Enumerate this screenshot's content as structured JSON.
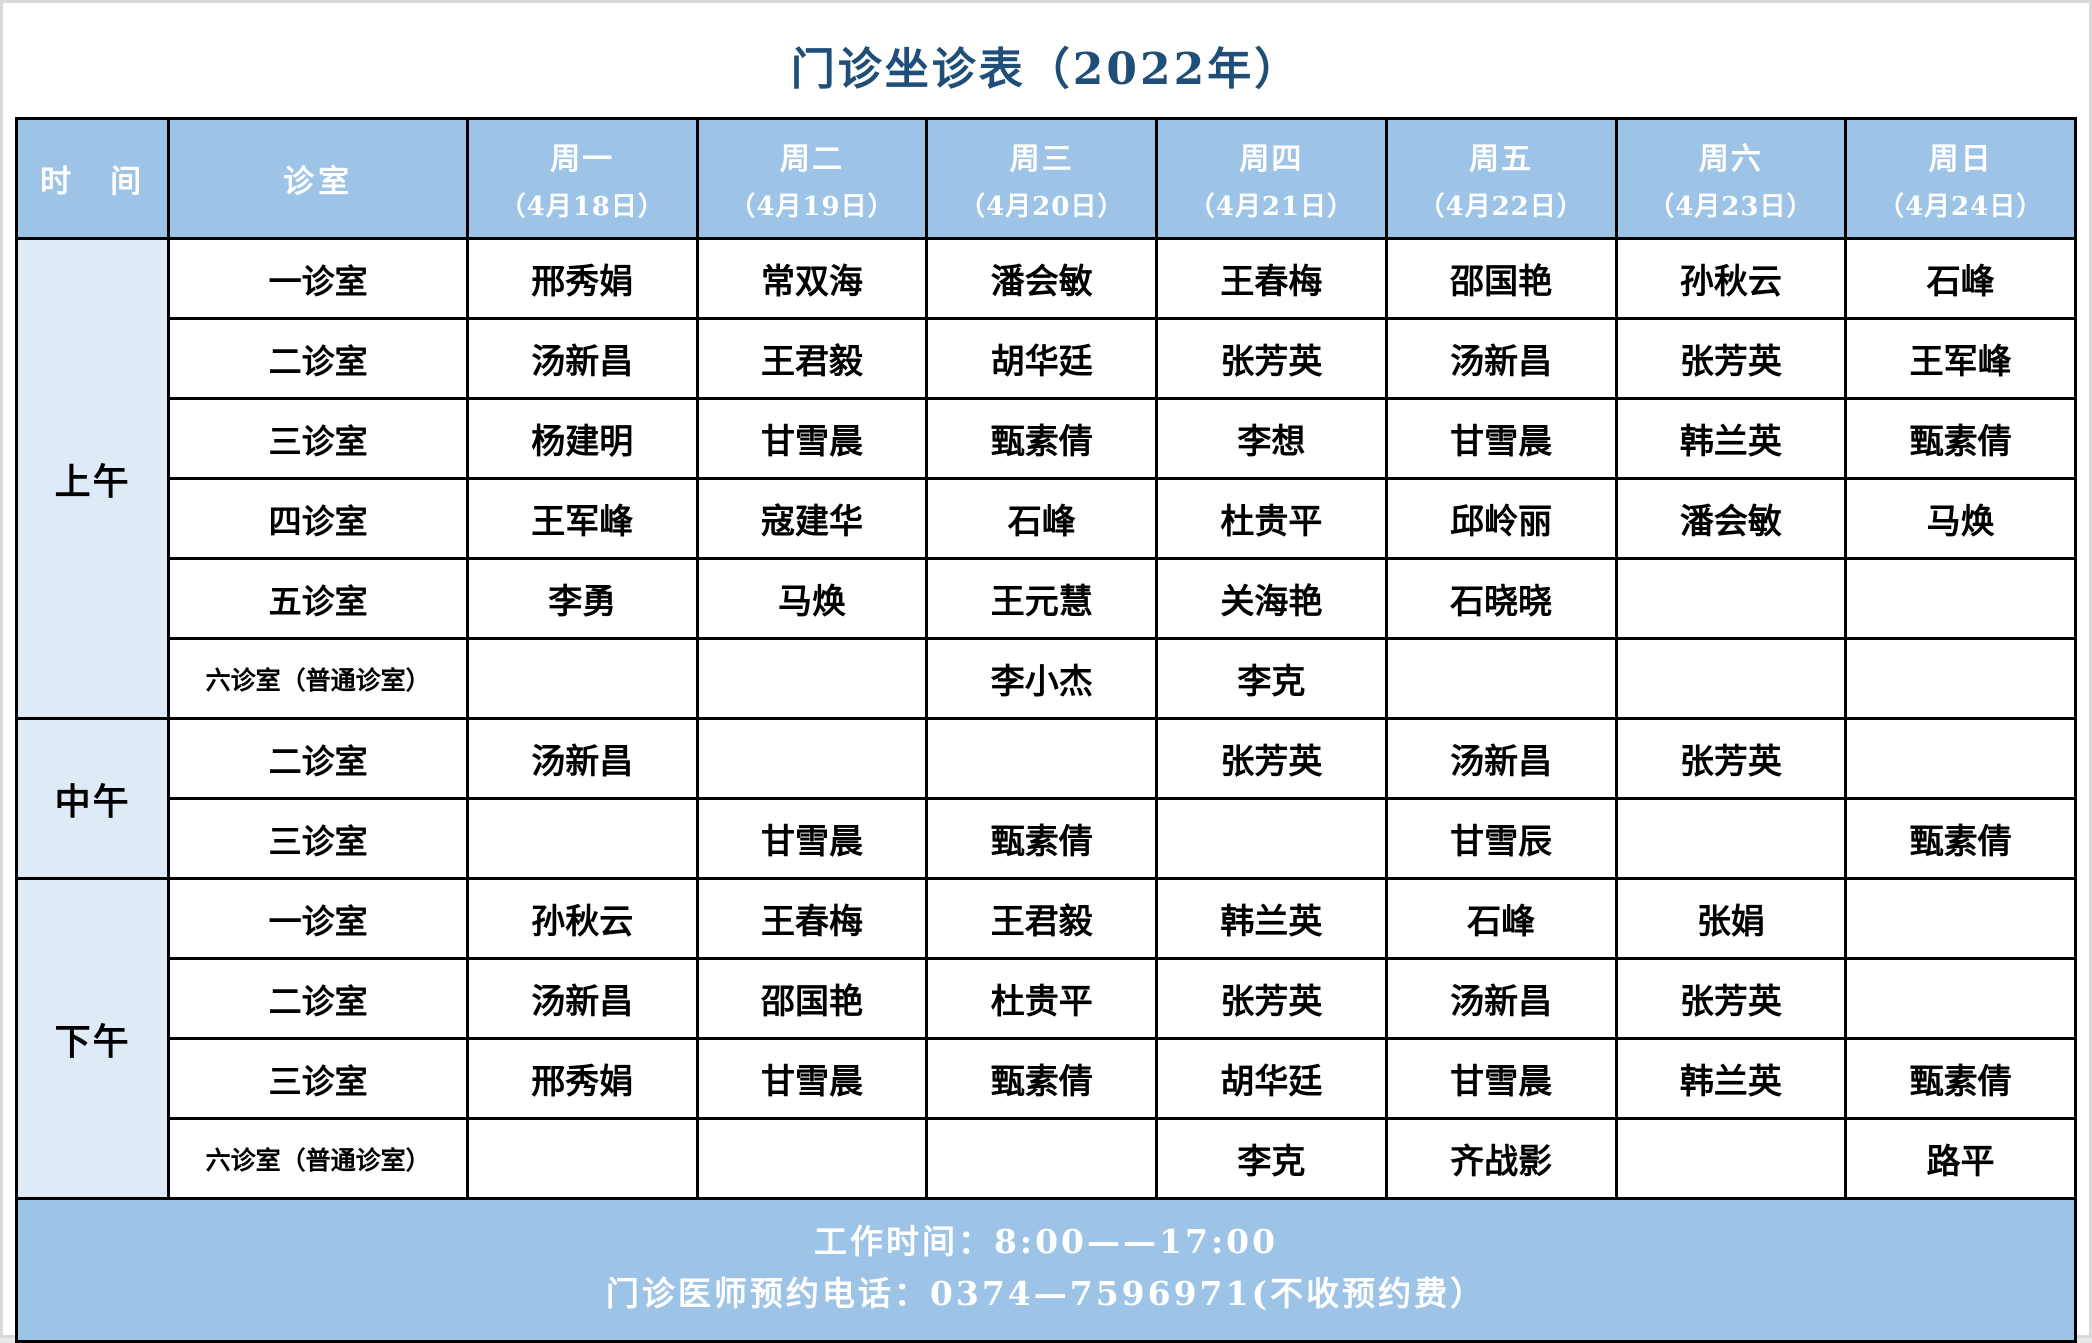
{
  "title": "门诊坐诊表（2022年）",
  "colors": {
    "header_bg": "#9DC3E6",
    "time_column_bg": "#DEEBF7",
    "title_text": "#1F4E79",
    "border": "#000000",
    "footer_bg": "#9DC3E6",
    "footer_text": "#FFFFFF"
  },
  "header": {
    "time_label": "时　间",
    "room_label": "诊室",
    "days": [
      {
        "day": "周一",
        "date": "（4月18日）"
      },
      {
        "day": "周二",
        "date": "（4月19日）"
      },
      {
        "day": "周三",
        "date": "（4月20日）"
      },
      {
        "day": "周四",
        "date": "（4月21日）"
      },
      {
        "day": "周五",
        "date": "（4月22日）"
      },
      {
        "day": "周六",
        "date": "（4月23日）"
      },
      {
        "day": "周日",
        "date": "（4月24日）"
      }
    ]
  },
  "sections": [
    {
      "time": "上午",
      "rows": [
        {
          "room": "一诊室",
          "small": false,
          "cells": [
            "邢秀娟",
            "常双海",
            "潘会敏",
            "王春梅",
            "邵国艳",
            "孙秋云",
            "石峰"
          ]
        },
        {
          "room": "二诊室",
          "small": false,
          "cells": [
            "汤新昌",
            "王君毅",
            "胡华廷",
            "张芳英",
            "汤新昌",
            "张芳英",
            "王军峰"
          ]
        },
        {
          "room": "三诊室",
          "small": false,
          "cells": [
            "杨建明",
            "甘雪晨",
            "甄素倩",
            "李想",
            "甘雪晨",
            "韩兰英",
            "甄素倩"
          ]
        },
        {
          "room": "四诊室",
          "small": false,
          "cells": [
            "王军峰",
            "寇建华",
            "石峰",
            "杜贵平",
            "邱岭丽",
            "潘会敏",
            "马焕"
          ]
        },
        {
          "room": "五诊室",
          "small": false,
          "cells": [
            "李勇",
            "马焕",
            "王元慧",
            "关海艳",
            "石晓晓",
            "",
            ""
          ]
        },
        {
          "room": "六诊室（普通诊室）",
          "small": true,
          "cells": [
            "",
            "",
            "李小杰",
            "李克",
            "",
            "",
            ""
          ]
        }
      ]
    },
    {
      "time": "中午",
      "rows": [
        {
          "room": "二诊室",
          "small": false,
          "cells": [
            "汤新昌",
            "",
            "",
            "张芳英",
            "汤新昌",
            "张芳英",
            ""
          ]
        },
        {
          "room": "三诊室",
          "small": false,
          "cells": [
            "",
            "甘雪晨",
            "甄素倩",
            "",
            "甘雪辰",
            "",
            "甄素倩"
          ]
        }
      ]
    },
    {
      "time": "下午",
      "rows": [
        {
          "room": "一诊室",
          "small": false,
          "cells": [
            "孙秋云",
            "王春梅",
            "王君毅",
            "韩兰英",
            "石峰",
            "张娟",
            ""
          ]
        },
        {
          "room": "二诊室",
          "small": false,
          "cells": [
            "汤新昌",
            "邵国艳",
            "杜贵平",
            "张芳英",
            "汤新昌",
            "张芳英",
            ""
          ]
        },
        {
          "room": "三诊室",
          "small": false,
          "cells": [
            "邢秀娟",
            "甘雪晨",
            "甄素倩",
            "胡华廷",
            "甘雪晨",
            "韩兰英",
            "甄素倩"
          ]
        },
        {
          "room": "六诊室（普通诊室）",
          "small": true,
          "cells": [
            "",
            "",
            "",
            "李克",
            "齐战影",
            "",
            "路平"
          ]
        }
      ]
    }
  ],
  "footer": {
    "line1": "工作时间：8:00——17:00",
    "line2": "门诊医师预约电话：0374—7596971(不收预约费）"
  }
}
